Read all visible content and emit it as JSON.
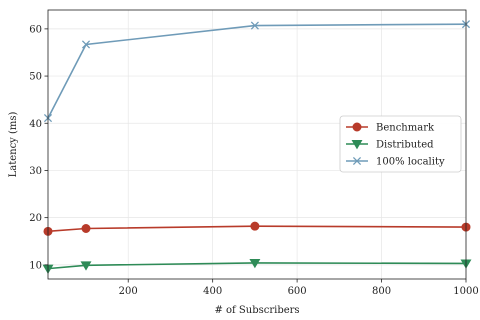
{
  "chart_data": {
    "type": "line",
    "title": "",
    "xlabel": "# of Subscribers",
    "ylabel": "Latency (ms)",
    "xlim": [
      10,
      1000
    ],
    "ylim": [
      7,
      64
    ],
    "xticks": [
      200,
      400,
      600,
      800,
      1000
    ],
    "yticks": [
      10,
      20,
      30,
      40,
      50,
      60
    ],
    "grid": true,
    "legend_position": "center-right",
    "series": [
      {
        "name": "Benchmark",
        "color": "#b83b2a",
        "marker": "circle",
        "x": [
          10,
          100,
          500,
          1000
        ],
        "y": [
          17.1,
          17.7,
          18.2,
          18.0
        ]
      },
      {
        "name": "Distributed",
        "color": "#2e8b57",
        "marker": "triangle-down",
        "x": [
          10,
          100,
          500,
          1000
        ],
        "y": [
          9.2,
          9.9,
          10.4,
          10.3
        ]
      },
      {
        "name": "100% locality",
        "color": "#6f9bb8",
        "marker": "x",
        "x": [
          10,
          100,
          500,
          1000
        ],
        "y": [
          41.1,
          56.7,
          60.7,
          61.0
        ]
      }
    ]
  }
}
